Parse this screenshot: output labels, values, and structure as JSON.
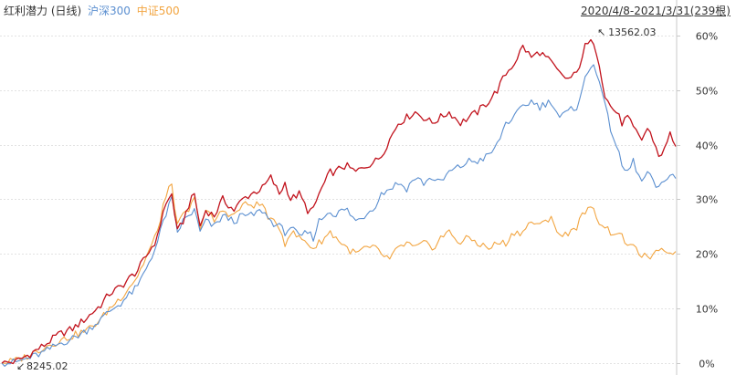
{
  "legend": {
    "main": "红利潜力 (日线)",
    "hs300": "沪深300",
    "zz500": "中证500"
  },
  "date_range": "2020/4/8-2021/3/31(239根)",
  "colors": {
    "main": "#c1121c",
    "hs300": "#5b8fd0",
    "zz500": "#f2a541",
    "grid": "#e2e2e2",
    "axis": "#c8c8c8",
    "text": "#333333"
  },
  "chart_data": {
    "type": "line",
    "y_unit": "%",
    "ylim": [
      -1.5,
      62.5
    ],
    "yticks": [
      "0%",
      "10%",
      "20%",
      "30%",
      "40%",
      "50%",
      "60%"
    ],
    "grid": true,
    "n_points": 239,
    "annotations": {
      "max_label": "13562.03",
      "min_label": "8245.02"
    },
    "series": [
      {
        "key": "main",
        "name": "红利潜力",
        "keypoints": [
          [
            0,
            0
          ],
          [
            5,
            0.3
          ],
          [
            10,
            1.7
          ],
          [
            15,
            3.3
          ],
          [
            20,
            5.2
          ],
          [
            25,
            6.3
          ],
          [
            30,
            8.3
          ],
          [
            35,
            10.7
          ],
          [
            38,
            12.7
          ],
          [
            42,
            14
          ],
          [
            48,
            17
          ],
          [
            55,
            23
          ],
          [
            57,
            28
          ],
          [
            60,
            31
          ],
          [
            62,
            24
          ],
          [
            64,
            26
          ],
          [
            66,
            29
          ],
          [
            68,
            31
          ],
          [
            70,
            25
          ],
          [
            72,
            28
          ],
          [
            75,
            27
          ],
          [
            78,
            30
          ],
          [
            82,
            28
          ],
          [
            85,
            30
          ],
          [
            88,
            31
          ],
          [
            92,
            32
          ],
          [
            95,
            34
          ],
          [
            98,
            31
          ],
          [
            100,
            33
          ],
          [
            102,
            30
          ],
          [
            105,
            31
          ],
          [
            108,
            28
          ],
          [
            110,
            28
          ],
          [
            112,
            31
          ],
          [
            114,
            33
          ],
          [
            116,
            35
          ],
          [
            118,
            35
          ],
          [
            120,
            36
          ],
          [
            122,
            36
          ],
          [
            125,
            35
          ],
          [
            128,
            36
          ],
          [
            132,
            37
          ],
          [
            134,
            38
          ],
          [
            137,
            41
          ],
          [
            140,
            44
          ],
          [
            143,
            45
          ],
          [
            146,
            46
          ],
          [
            149,
            45
          ],
          [
            152,
            44
          ],
          [
            155,
            45
          ],
          [
            158,
            46
          ],
          [
            162,
            44
          ],
          [
            165,
            45
          ],
          [
            168,
            46
          ],
          [
            172,
            48
          ],
          [
            175,
            50
          ],
          [
            178,
            53
          ],
          [
            181,
            55
          ],
          [
            184,
            58
          ],
          [
            187,
            56
          ],
          [
            190,
            57
          ],
          [
            194,
            55
          ],
          [
            197,
            53
          ],
          [
            200,
            52
          ],
          [
            203,
            53
          ],
          [
            206,
            58
          ],
          [
            209,
            59
          ],
          [
            211,
            55
          ],
          [
            213,
            49
          ],
          [
            215,
            47
          ],
          [
            217,
            46
          ],
          [
            219,
            44
          ],
          [
            221,
            45
          ],
          [
            223,
            43
          ],
          [
            226,
            41
          ],
          [
            228,
            43
          ],
          [
            230,
            41
          ],
          [
            232,
            38
          ],
          [
            234,
            39
          ],
          [
            236,
            42
          ],
          [
            238,
            40
          ]
        ]
      },
      {
        "key": "hs300",
        "name": "沪深300",
        "keypoints": [
          [
            0,
            0
          ],
          [
            5,
            0.2
          ],
          [
            10,
            1
          ],
          [
            15,
            2
          ],
          [
            20,
            3.5
          ],
          [
            25,
            4.5
          ],
          [
            30,
            6
          ],
          [
            35,
            8
          ],
          [
            38,
            9.5
          ],
          [
            42,
            11
          ],
          [
            48,
            14
          ],
          [
            55,
            22
          ],
          [
            57,
            26
          ],
          [
            60,
            30
          ],
          [
            62,
            24
          ],
          [
            64,
            26
          ],
          [
            66,
            27
          ],
          [
            68,
            28
          ],
          [
            70,
            24
          ],
          [
            72,
            26
          ],
          [
            75,
            25
          ],
          [
            78,
            27
          ],
          [
            82,
            26
          ],
          [
            85,
            27
          ],
          [
            88,
            27
          ],
          [
            92,
            28
          ],
          [
            95,
            26
          ],
          [
            98,
            25
          ],
          [
            100,
            24
          ],
          [
            102,
            25
          ],
          [
            105,
            23
          ],
          [
            108,
            24
          ],
          [
            110,
            23
          ],
          [
            112,
            26
          ],
          [
            114,
            27
          ],
          [
            116,
            28
          ],
          [
            118,
            27
          ],
          [
            120,
            28
          ],
          [
            122,
            28
          ],
          [
            125,
            26
          ],
          [
            128,
            27
          ],
          [
            132,
            29
          ],
          [
            134,
            31
          ],
          [
            137,
            32
          ],
          [
            140,
            33
          ],
          [
            143,
            32
          ],
          [
            146,
            34
          ],
          [
            149,
            33
          ],
          [
            152,
            34
          ],
          [
            155,
            33
          ],
          [
            158,
            35
          ],
          [
            162,
            36
          ],
          [
            165,
            37
          ],
          [
            168,
            37
          ],
          [
            172,
            38
          ],
          [
            175,
            40
          ],
          [
            178,
            44
          ],
          [
            181,
            45
          ],
          [
            184,
            47
          ],
          [
            187,
            48
          ],
          [
            190,
            47
          ],
          [
            194,
            48
          ],
          [
            197,
            45
          ],
          [
            200,
            46
          ],
          [
            203,
            47
          ],
          [
            206,
            52
          ],
          [
            209,
            55
          ],
          [
            211,
            52
          ],
          [
            213,
            47
          ],
          [
            215,
            43
          ],
          [
            217,
            40
          ],
          [
            219,
            36
          ],
          [
            221,
            35
          ],
          [
            223,
            37
          ],
          [
            226,
            33
          ],
          [
            228,
            35
          ],
          [
            230,
            33
          ],
          [
            232,
            32
          ],
          [
            234,
            33
          ],
          [
            236,
            35
          ],
          [
            238,
            34
          ]
        ]
      },
      {
        "key": "zz500",
        "name": "中证500",
        "keypoints": [
          [
            0,
            0
          ],
          [
            5,
            0.5
          ],
          [
            10,
            1.5
          ],
          [
            15,
            3
          ],
          [
            20,
            4
          ],
          [
            25,
            5
          ],
          [
            30,
            6
          ],
          [
            35,
            8
          ],
          [
            38,
            10
          ],
          [
            42,
            12
          ],
          [
            48,
            16
          ],
          [
            55,
            24
          ],
          [
            57,
            29
          ],
          [
            60,
            33
          ],
          [
            62,
            25
          ],
          [
            64,
            27
          ],
          [
            66,
            28
          ],
          [
            68,
            30
          ],
          [
            70,
            25
          ],
          [
            72,
            28
          ],
          [
            75,
            26
          ],
          [
            78,
            28
          ],
          [
            82,
            27
          ],
          [
            85,
            29
          ],
          [
            88,
            29
          ],
          [
            92,
            29
          ],
          [
            95,
            26
          ],
          [
            98,
            25
          ],
          [
            100,
            22
          ],
          [
            102,
            24
          ],
          [
            105,
            23
          ],
          [
            108,
            22
          ],
          [
            110,
            21
          ],
          [
            112,
            22
          ],
          [
            114,
            23
          ],
          [
            116,
            24
          ],
          [
            118,
            23
          ],
          [
            120,
            22
          ],
          [
            122,
            21
          ],
          [
            125,
            20
          ],
          [
            128,
            21
          ],
          [
            132,
            21
          ],
          [
            134,
            20
          ],
          [
            137,
            19
          ],
          [
            140,
            21
          ],
          [
            143,
            22
          ],
          [
            146,
            21
          ],
          [
            149,
            22
          ],
          [
            152,
            21
          ],
          [
            155,
            23
          ],
          [
            158,
            24
          ],
          [
            162,
            22
          ],
          [
            165,
            23
          ],
          [
            168,
            22
          ],
          [
            172,
            21
          ],
          [
            175,
            22
          ],
          [
            178,
            22
          ],
          [
            181,
            24
          ],
          [
            184,
            24
          ],
          [
            187,
            26
          ],
          [
            190,
            25
          ],
          [
            194,
            27
          ],
          [
            197,
            23
          ],
          [
            200,
            24
          ],
          [
            203,
            25
          ],
          [
            206,
            28
          ],
          [
            209,
            28
          ],
          [
            211,
            26
          ],
          [
            213,
            25
          ],
          [
            215,
            24
          ],
          [
            217,
            24
          ],
          [
            219,
            23
          ],
          [
            221,
            22
          ],
          [
            223,
            21
          ],
          [
            226,
            20
          ],
          [
            228,
            19
          ],
          [
            230,
            20
          ],
          [
            232,
            20
          ],
          [
            234,
            21
          ],
          [
            236,
            20
          ],
          [
            238,
            21
          ]
        ]
      }
    ]
  }
}
